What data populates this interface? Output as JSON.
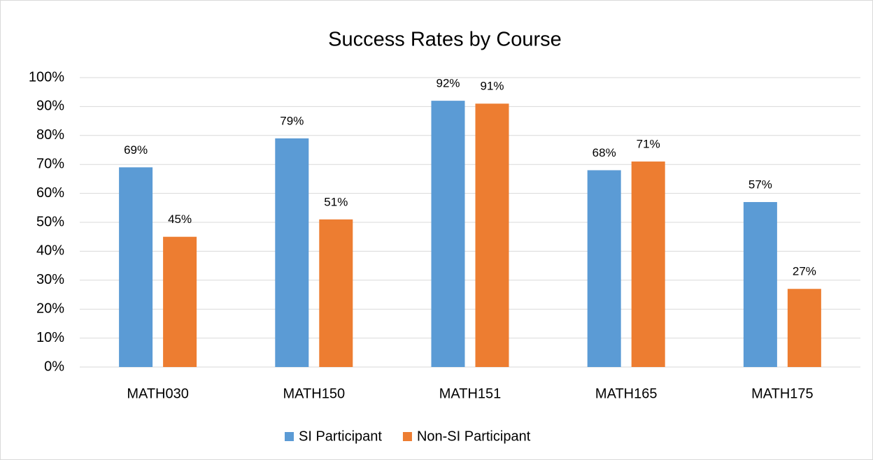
{
  "chart_data": {
    "type": "bar",
    "title": "Success Rates by Course",
    "categories": [
      "MATH030",
      "MATH150",
      "MATH151",
      "MATH165",
      "MATH175"
    ],
    "series": [
      {
        "name": "SI Participant",
        "color": "#5b9bd5",
        "values": [
          69,
          79,
          92,
          68,
          57
        ],
        "value_labels": [
          "69%",
          "79%",
          "92%",
          "68%",
          "57%"
        ]
      },
      {
        "name": "Non-SI Participant",
        "color": "#ed7d31",
        "values": [
          45,
          51,
          91,
          71,
          27
        ],
        "value_labels": [
          "45%",
          "51%",
          "91%",
          "71%",
          "27%"
        ]
      }
    ],
    "ylim": [
      0,
      100
    ],
    "yticks": [
      {
        "value": 0,
        "label": "0%"
      },
      {
        "value": 10,
        "label": "10%"
      },
      {
        "value": 20,
        "label": "20%"
      },
      {
        "value": 30,
        "label": "30%"
      },
      {
        "value": 40,
        "label": "40%"
      },
      {
        "value": 50,
        "label": "50%"
      },
      {
        "value": 60,
        "label": "60%"
      },
      {
        "value": 70,
        "label": "70%"
      },
      {
        "value": 80,
        "label": "80%"
      },
      {
        "value": 90,
        "label": "90%"
      },
      {
        "value": 100,
        "label": "100%"
      }
    ],
    "grid": true,
    "legend": "bottom"
  }
}
